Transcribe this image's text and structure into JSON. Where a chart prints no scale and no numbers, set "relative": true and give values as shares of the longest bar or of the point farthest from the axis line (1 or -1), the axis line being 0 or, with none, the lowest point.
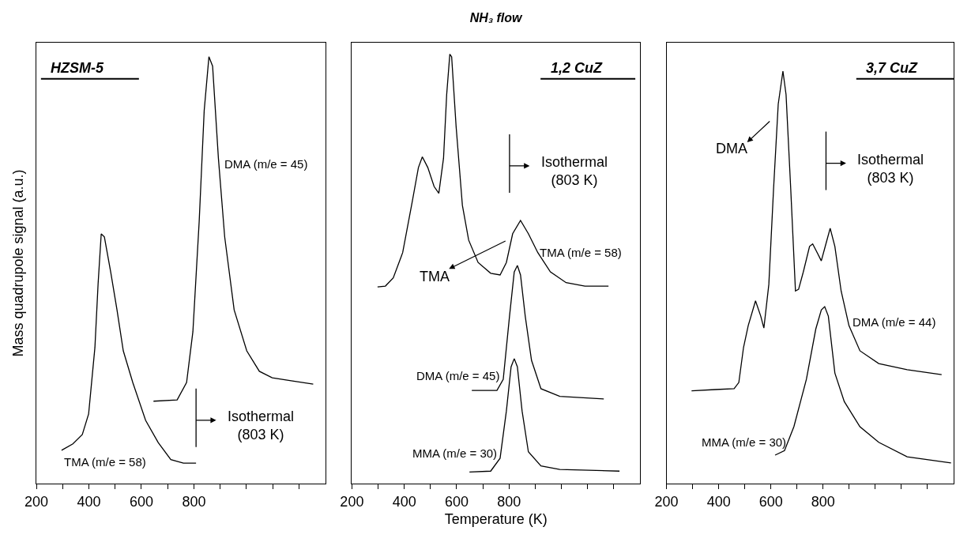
{
  "chart_data": [
    {
      "type": "line",
      "relative": true,
      "ylabel": "Mass quadrupole signal (a.u.)",
      "xlim": [
        200,
        1300
      ],
      "xticks": [
        200,
        {
          "value": 300,
          "label": null
        },
        400,
        {
          "value": 500,
          "label": null
        },
        600,
        {
          "value": 700,
          "label": null
        },
        800,
        {
          "value": 900,
          "label": null
        },
        {
          "value": 1000,
          "label": null
        },
        {
          "value": 1100,
          "label": null
        },
        {
          "value": 1200,
          "label": null
        }
      ],
      "series": [
        {
          "color": "#000000",
          "x": [
            296,
            339,
            375,
            399,
            423,
            435,
            447,
            459,
            483,
            507,
            531,
            567,
            616,
            664,
            712,
            760,
            808
          ],
          "values": [
            0.078,
            0.093,
            0.115,
            0.163,
            0.319,
            0.467,
            0.585,
            0.578,
            0.496,
            0.407,
            0.311,
            0.237,
            0.148,
            0.096,
            0.056,
            0.048,
            0.048
          ]
        },
        {
          "color": "#000000",
          "x": [
            646,
            736,
            772,
            796,
            820,
            839,
            857,
            871,
            893,
            917,
            953,
            1001,
            1049,
            1098,
            1170,
            1254
          ],
          "values": [
            0.193,
            0.196,
            0.237,
            0.356,
            0.615,
            0.874,
            1.0,
            0.978,
            0.763,
            0.578,
            0.407,
            0.311,
            0.263,
            0.248,
            0.241,
            0.233
          ]
        }
      ],
      "annotations": [
        "HZSM-5",
        {
          "text": "DMA (m/e = 45)",
          "x": 911,
          "y": 0.748
        },
        "TMA (m/e = 58)"
      ],
      "ref_lines": [
        {
          "axis": "x",
          "value": 808,
          "label": "Isothermal\n(803 K)"
        }
      ]
    },
    {
      "type": "line",
      "relative": true,
      "title": "NH₃ flow",
      "xlabel": "Temperature (K)",
      "xlim": [
        200,
        1300
      ],
      "xticks": [
        200,
        {
          "value": 300,
          "label": null
        },
        400,
        {
          "value": 500,
          "label": null
        },
        600,
        {
          "value": 700,
          "label": null
        },
        800,
        {
          "value": 900,
          "label": null
        },
        {
          "value": 1000,
          "label": null
        },
        {
          "value": 1100,
          "label": null
        },
        {
          "value": 1200,
          "label": null
        }
      ],
      "series": [
        {
          "color": "#000000",
          "x": [
            298,
            328,
            358,
            394,
            430,
            454,
            469,
            490,
            514,
            532,
            550,
            562,
            574,
            581,
            598,
            622,
            646,
            682,
            730,
            766,
            790,
            814,
            844,
            874,
            910,
            958,
            1018,
            1090,
            1180
          ],
          "values": [
            0.458,
            0.46,
            0.479,
            0.538,
            0.655,
            0.736,
            0.761,
            0.736,
            0.692,
            0.676,
            0.758,
            0.906,
            1.0,
            0.994,
            0.832,
            0.648,
            0.567,
            0.515,
            0.49,
            0.486,
            0.515,
            0.582,
            0.613,
            0.582,
            0.538,
            0.493,
            0.468,
            0.46,
            0.46
          ]
        },
        {
          "color": "#000000",
          "x": [
            658,
            754,
            778,
            802,
            820,
            832,
            844,
            862,
            886,
            922,
            994,
            1162
          ],
          "values": [
            0.217,
            0.217,
            0.243,
            0.39,
            0.493,
            0.508,
            0.486,
            0.39,
            0.287,
            0.221,
            0.203,
            0.197
          ]
        },
        {
          "color": "#000000",
          "x": [
            649,
            730,
            766,
            790,
            808,
            820,
            832,
            850,
            874,
            922,
            994,
            1222
          ],
          "values": [
            0.027,
            0.029,
            0.059,
            0.169,
            0.272,
            0.291,
            0.272,
            0.169,
            0.074,
            0.041,
            0.033,
            0.029
          ]
        }
      ],
      "annotations": [
        "1,2 CuZ",
        "TMA",
        {
          "text": "TMA (m/e = 58)",
          "x": 910,
          "y": 0.539
        },
        {
          "text": "DMA (m/e = 45)",
          "x": 769,
          "y": 0.252
        },
        {
          "text": "MMA (m/e = 30)",
          "x": 760,
          "y": 0.07
        }
      ],
      "ref_lines": [
        {
          "axis": "x",
          "value": 802,
          "label": "Isothermal\n(803 K)"
        }
      ]
    },
    {
      "type": "line",
      "relative": true,
      "xlim": [
        200,
        1300
      ],
      "xticks": [
        200,
        {
          "value": 300,
          "label": null
        },
        400,
        {
          "value": 500,
          "label": null
        },
        600,
        {
          "value": 700,
          "label": null
        },
        800,
        {
          "value": 900,
          "label": null
        },
        {
          "value": 1000,
          "label": null
        },
        {
          "value": 1100,
          "label": null
        },
        {
          "value": 1200,
          "label": null
        }
      ],
      "series": [
        {
          "color": "#000000",
          "x": [
            296,
            387,
            459,
            477,
            495,
            513,
            541,
            561,
            573,
            592,
            610,
            628,
            646,
            658,
            676,
            694,
            706,
            724,
            748,
            760,
            778,
            793,
            811,
            827,
            845,
            869,
            899,
            941,
            1013,
            1122,
            1254
          ],
          "values": [
            0.225,
            0.228,
            0.23,
            0.245,
            0.33,
            0.383,
            0.443,
            0.406,
            0.377,
            0.483,
            0.713,
            0.92,
            1.0,
            0.943,
            0.713,
            0.467,
            0.471,
            0.513,
            0.575,
            0.581,
            0.559,
            0.54,
            0.582,
            0.619,
            0.575,
            0.467,
            0.383,
            0.322,
            0.291,
            0.276,
            0.264
          ]
        },
        {
          "color": "#000000",
          "x": [
            616,
            652,
            688,
            736,
            772,
            793,
            806,
            820,
            845,
            881,
            941,
            1013,
            1122,
            1290
          ],
          "values": [
            0.069,
            0.08,
            0.138,
            0.253,
            0.375,
            0.421,
            0.429,
            0.406,
            0.268,
            0.199,
            0.138,
            0.1,
            0.065,
            0.05
          ]
        }
      ],
      "annotations": [
        "3,7 CuZ",
        "DMA",
        {
          "text": "DMA (m/e = 44)",
          "x": 905,
          "y": 0.392
        },
        {
          "text": "MMA (m/e = 30)",
          "x": 664,
          "y": 0.1
        }
      ],
      "ref_lines": [
        {
          "axis": "x",
          "value": 811,
          "label": "Isothermal\n(803 K)"
        }
      ]
    }
  ]
}
